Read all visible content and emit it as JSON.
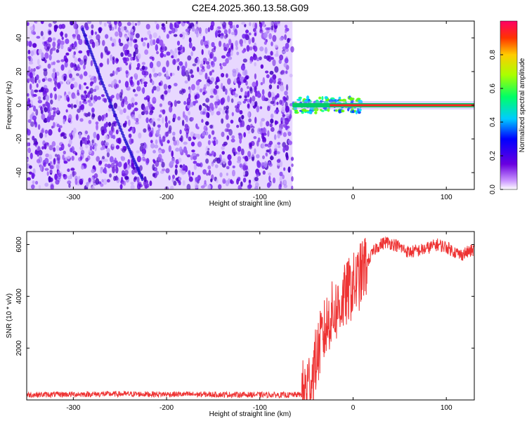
{
  "title": "C2E4.2025.360.13.58.G09",
  "chart_data": [
    {
      "type": "heatmap",
      "xlabel": "Height of straight line (km)",
      "ylabel": "Frequency (Hz)",
      "xlim": [
        -350,
        130
      ],
      "ylim": [
        -50,
        50
      ],
      "x_ticks": [
        -300,
        -200,
        -100,
        0,
        100
      ],
      "y_ticks": [
        -40,
        -20,
        0,
        20,
        40
      ],
      "colorbar": {
        "label": "Normalized spectral amplitude",
        "range": [
          0,
          1
        ],
        "ticks": [
          "0.0",
          "0.2",
          "0.4",
          "0.6",
          "0.8"
        ]
      },
      "regions": [
        {
          "description": "noise",
          "x_range": [
            -350,
            -65
          ],
          "freq_range": [
            -50,
            50
          ],
          "amplitude_approx": 0.1
        },
        {
          "description": "signal carrier",
          "x_range": [
            -65,
            130
          ],
          "freq": 0,
          "amplitude_approx": 1.0
        }
      ],
      "faint_trace": [
        [
          -290,
          45
        ],
        [
          -270,
          15
        ],
        [
          -245,
          -20
        ],
        [
          -225,
          -45
        ]
      ]
    },
    {
      "type": "line",
      "xlabel": "Height of straight line (km)",
      "ylabel": "SNR (10 * v/v)",
      "xlim": [
        -350,
        130
      ],
      "ylim": [
        0,
        6500
      ],
      "x_ticks": [
        -300,
        -200,
        -100,
        0,
        100
      ],
      "y_ticks": [
        2000,
        4000,
        6000
      ],
      "series": [
        {
          "color": "#ee3333",
          "x": [
            -350,
            -300,
            -250,
            -200,
            -150,
            -100,
            -70,
            -55,
            -45,
            -35,
            -25,
            -15,
            -5,
            5,
            15,
            25,
            35,
            45,
            60,
            75,
            90,
            100,
            115,
            130
          ],
          "y": [
            200,
            220,
            230,
            220,
            210,
            200,
            190,
            210,
            800,
            2200,
            3200,
            3600,
            4200,
            4600,
            5300,
            5900,
            6100,
            6000,
            5700,
            5800,
            6000,
            5900,
            5600,
            5800
          ]
        }
      ]
    }
  ]
}
